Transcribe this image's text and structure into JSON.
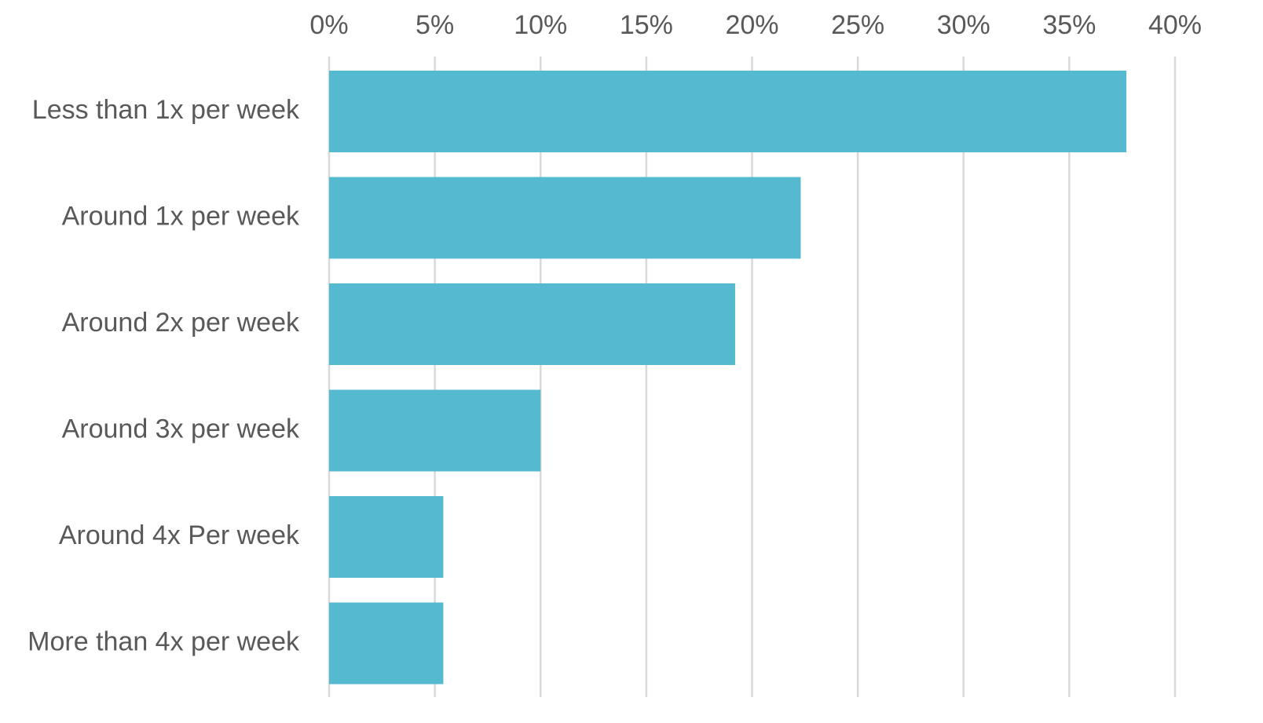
{
  "chart_data": {
    "type": "bar",
    "orientation": "horizontal",
    "categories": [
      "Less than 1x per week",
      "Around 1x per week",
      "Around 2x per week",
      "Around 3x per week",
      "Around 4x Per week",
      "More than 4x per week"
    ],
    "values": [
      0.377,
      0.223,
      0.192,
      0.1,
      0.054,
      0.054
    ],
    "xlim": [
      0,
      0.4
    ],
    "x_ticks": [
      0,
      0.05,
      0.1,
      0.15,
      0.2,
      0.25,
      0.3,
      0.35,
      0.4
    ],
    "x_tick_labels": [
      "0%",
      "5%",
      "10%",
      "15%",
      "20%",
      "25%",
      "30%",
      "35%",
      "40%"
    ],
    "axis_position": "top",
    "grid": true,
    "legend": "none",
    "title": "",
    "xlabel": "",
    "ylabel": "",
    "colors": {
      "bar": "#55b9cf",
      "grid": "#d9d9d9",
      "text": "#595959"
    }
  }
}
